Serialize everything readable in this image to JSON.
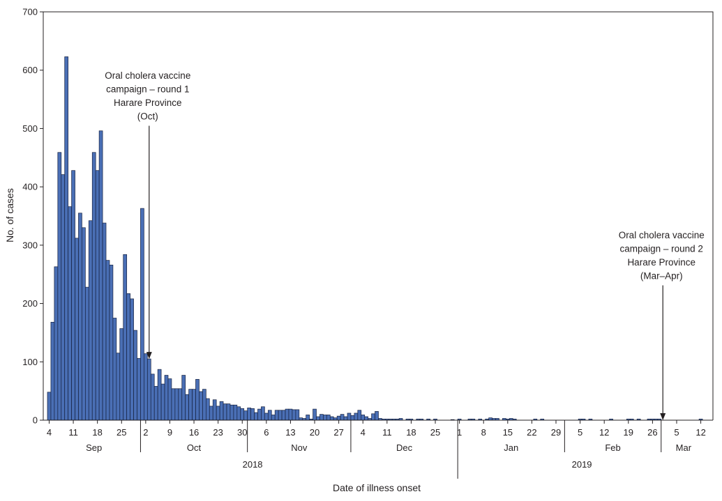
{
  "chart_data": {
    "type": "bar",
    "title": "",
    "xlabel": "Date of illness onset",
    "ylabel": "No. of cases",
    "ylim": [
      0,
      700
    ],
    "yticks": [
      0,
      100,
      200,
      300,
      400,
      500,
      600,
      700
    ],
    "grid": false,
    "bar_color": "#4a6fb5",
    "bar_edge_color": "#16213f",
    "x_start_date": "2018-09-04",
    "x_end_date": "2019-03-13",
    "day_ticks": [
      {
        "date": "2018-09-04",
        "label": "4"
      },
      {
        "date": "2018-09-11",
        "label": "11"
      },
      {
        "date": "2018-09-18",
        "label": "18"
      },
      {
        "date": "2018-09-25",
        "label": "25"
      },
      {
        "date": "2018-10-02",
        "label": "2"
      },
      {
        "date": "2018-10-09",
        "label": "9"
      },
      {
        "date": "2018-10-16",
        "label": "16"
      },
      {
        "date": "2018-10-23",
        "label": "23"
      },
      {
        "date": "2018-10-30",
        "label": "30"
      },
      {
        "date": "2018-11-06",
        "label": "6"
      },
      {
        "date": "2018-11-13",
        "label": "13"
      },
      {
        "date": "2018-11-20",
        "label": "20"
      },
      {
        "date": "2018-11-27",
        "label": "27"
      },
      {
        "date": "2018-12-04",
        "label": "4"
      },
      {
        "date": "2018-12-11",
        "label": "11"
      },
      {
        "date": "2018-12-18",
        "label": "18"
      },
      {
        "date": "2018-12-25",
        "label": "25"
      },
      {
        "date": "2019-01-01",
        "label": "1"
      },
      {
        "date": "2019-01-08",
        "label": "8"
      },
      {
        "date": "2019-01-15",
        "label": "15"
      },
      {
        "date": "2019-01-22",
        "label": "22"
      },
      {
        "date": "2019-01-29",
        "label": "29"
      },
      {
        "date": "2019-02-05",
        "label": "5"
      },
      {
        "date": "2019-02-12",
        "label": "12"
      },
      {
        "date": "2019-02-19",
        "label": "19"
      },
      {
        "date": "2019-02-26",
        "label": "26"
      },
      {
        "date": "2019-03-05",
        "label": "5"
      },
      {
        "date": "2019-03-12",
        "label": "12"
      }
    ],
    "months": [
      {
        "label": "Sep",
        "start": "2018-09-01",
        "end": "2018-10-01"
      },
      {
        "label": "Oct",
        "start": "2018-10-01",
        "end": "2018-11-01"
      },
      {
        "label": "Nov",
        "start": "2018-11-01",
        "end": "2018-12-01"
      },
      {
        "label": "Dec",
        "start": "2018-12-01",
        "end": "2019-01-01"
      },
      {
        "label": "Jan",
        "start": "2019-01-01",
        "end": "2019-02-01"
      },
      {
        "label": "Feb",
        "start": "2019-02-01",
        "end": "2019-03-01"
      },
      {
        "label": "Mar",
        "start": "2019-03-01",
        "end": "2019-04-01"
      }
    ],
    "years": [
      {
        "label": "2018",
        "start": "2018-09-01",
        "end": "2019-01-01"
      },
      {
        "label": "2019",
        "start": "2019-01-01",
        "end": "2019-04-01"
      }
    ],
    "series": [
      {
        "values": [
          {
            "date": "2018-09-04",
            "value": 48
          },
          {
            "date": "2018-09-05",
            "value": 168
          },
          {
            "date": "2018-09-06",
            "value": 263
          },
          {
            "date": "2018-09-07",
            "value": 459
          },
          {
            "date": "2018-09-08",
            "value": 421
          },
          {
            "date": "2018-09-09",
            "value": 623
          },
          {
            "date": "2018-09-10",
            "value": 366
          },
          {
            "date": "2018-09-11",
            "value": 428
          },
          {
            "date": "2018-09-12",
            "value": 312
          },
          {
            "date": "2018-09-13",
            "value": 355
          },
          {
            "date": "2018-09-14",
            "value": 330
          },
          {
            "date": "2018-09-15",
            "value": 228
          },
          {
            "date": "2018-09-16",
            "value": 342
          },
          {
            "date": "2018-09-17",
            "value": 459
          },
          {
            "date": "2018-09-18",
            "value": 428
          },
          {
            "date": "2018-09-19",
            "value": 496
          },
          {
            "date": "2018-09-20",
            "value": 338
          },
          {
            "date": "2018-09-21",
            "value": 274
          },
          {
            "date": "2018-09-22",
            "value": 266
          },
          {
            "date": "2018-09-23",
            "value": 175
          },
          {
            "date": "2018-09-24",
            "value": 115
          },
          {
            "date": "2018-09-25",
            "value": 157
          },
          {
            "date": "2018-09-26",
            "value": 284
          },
          {
            "date": "2018-09-27",
            "value": 217
          },
          {
            "date": "2018-09-28",
            "value": 208
          },
          {
            "date": "2018-09-29",
            "value": 154
          },
          {
            "date": "2018-09-30",
            "value": 106
          },
          {
            "date": "2018-10-01",
            "value": 363
          },
          {
            "date": "2018-10-02",
            "value": 114
          },
          {
            "date": "2018-10-03",
            "value": 105
          },
          {
            "date": "2018-10-04",
            "value": 79
          },
          {
            "date": "2018-10-05",
            "value": 58
          },
          {
            "date": "2018-10-06",
            "value": 87
          },
          {
            "date": "2018-10-07",
            "value": 62
          },
          {
            "date": "2018-10-08",
            "value": 77
          },
          {
            "date": "2018-10-09",
            "value": 71
          },
          {
            "date": "2018-10-10",
            "value": 54
          },
          {
            "date": "2018-10-11",
            "value": 54
          },
          {
            "date": "2018-10-12",
            "value": 54
          },
          {
            "date": "2018-10-13",
            "value": 77
          },
          {
            "date": "2018-10-14",
            "value": 44
          },
          {
            "date": "2018-10-15",
            "value": 53
          },
          {
            "date": "2018-10-16",
            "value": 53
          },
          {
            "date": "2018-10-17",
            "value": 70
          },
          {
            "date": "2018-10-18",
            "value": 49
          },
          {
            "date": "2018-10-19",
            "value": 53
          },
          {
            "date": "2018-10-20",
            "value": 37
          },
          {
            "date": "2018-10-21",
            "value": 24
          },
          {
            "date": "2018-10-22",
            "value": 35
          },
          {
            "date": "2018-10-23",
            "value": 24
          },
          {
            "date": "2018-10-24",
            "value": 32
          },
          {
            "date": "2018-10-25",
            "value": 28
          },
          {
            "date": "2018-10-26",
            "value": 28
          },
          {
            "date": "2018-10-27",
            "value": 26
          },
          {
            "date": "2018-10-28",
            "value": 26
          },
          {
            "date": "2018-10-29",
            "value": 23
          },
          {
            "date": "2018-10-30",
            "value": 20
          },
          {
            "date": "2018-10-31",
            "value": 16
          },
          {
            "date": "2018-11-01",
            "value": 21
          },
          {
            "date": "2018-11-02",
            "value": 20
          },
          {
            "date": "2018-11-03",
            "value": 13
          },
          {
            "date": "2018-11-04",
            "value": 19
          },
          {
            "date": "2018-11-05",
            "value": 23
          },
          {
            "date": "2018-11-06",
            "value": 12
          },
          {
            "date": "2018-11-07",
            "value": 17
          },
          {
            "date": "2018-11-08",
            "value": 9
          },
          {
            "date": "2018-11-09",
            "value": 17
          },
          {
            "date": "2018-11-10",
            "value": 17
          },
          {
            "date": "2018-11-11",
            "value": 17
          },
          {
            "date": "2018-11-12",
            "value": 19
          },
          {
            "date": "2018-11-13",
            "value": 19
          },
          {
            "date": "2018-11-14",
            "value": 18
          },
          {
            "date": "2018-11-15",
            "value": 18
          },
          {
            "date": "2018-11-16",
            "value": 4
          },
          {
            "date": "2018-11-17",
            "value": 3
          },
          {
            "date": "2018-11-18",
            "value": 9
          },
          {
            "date": "2018-11-19",
            "value": 2
          },
          {
            "date": "2018-11-20",
            "value": 19
          },
          {
            "date": "2018-11-21",
            "value": 6
          },
          {
            "date": "2018-11-22",
            "value": 10
          },
          {
            "date": "2018-11-23",
            "value": 9
          },
          {
            "date": "2018-11-24",
            "value": 9
          },
          {
            "date": "2018-11-25",
            "value": 6
          },
          {
            "date": "2018-11-26",
            "value": 4
          },
          {
            "date": "2018-11-27",
            "value": 7
          },
          {
            "date": "2018-11-28",
            "value": 10
          },
          {
            "date": "2018-11-29",
            "value": 6
          },
          {
            "date": "2018-11-30",
            "value": 12
          },
          {
            "date": "2018-12-01",
            "value": 8
          },
          {
            "date": "2018-12-02",
            "value": 12
          },
          {
            "date": "2018-12-03",
            "value": 17
          },
          {
            "date": "2018-12-04",
            "value": 9
          },
          {
            "date": "2018-12-05",
            "value": 6
          },
          {
            "date": "2018-12-06",
            "value": 3
          },
          {
            "date": "2018-12-07",
            "value": 11
          },
          {
            "date": "2018-12-08",
            "value": 15
          },
          {
            "date": "2018-12-09",
            "value": 3
          },
          {
            "date": "2018-12-10",
            "value": 2
          },
          {
            "date": "2018-12-11",
            "value": 2
          },
          {
            "date": "2018-12-12",
            "value": 2
          },
          {
            "date": "2018-12-13",
            "value": 2
          },
          {
            "date": "2018-12-14",
            "value": 2
          },
          {
            "date": "2018-12-15",
            "value": 3
          },
          {
            "date": "2018-12-17",
            "value": 2
          },
          {
            "date": "2018-12-18",
            "value": 2
          },
          {
            "date": "2018-12-20",
            "value": 2
          },
          {
            "date": "2018-12-21",
            "value": 2
          },
          {
            "date": "2018-12-23",
            "value": 2
          },
          {
            "date": "2018-12-25",
            "value": 2
          },
          {
            "date": "2018-12-30",
            "value": 1
          },
          {
            "date": "2019-01-01",
            "value": 2
          },
          {
            "date": "2019-01-04",
            "value": 2
          },
          {
            "date": "2019-01-05",
            "value": 2
          },
          {
            "date": "2019-01-07",
            "value": 2
          },
          {
            "date": "2019-01-09",
            "value": 2
          },
          {
            "date": "2019-01-10",
            "value": 4
          },
          {
            "date": "2019-01-11",
            "value": 3
          },
          {
            "date": "2019-01-12",
            "value": 3
          },
          {
            "date": "2019-01-14",
            "value": 3
          },
          {
            "date": "2019-01-15",
            "value": 2
          },
          {
            "date": "2019-01-16",
            "value": 3
          },
          {
            "date": "2019-01-17",
            "value": 2
          },
          {
            "date": "2019-01-23",
            "value": 2
          },
          {
            "date": "2019-01-25",
            "value": 2
          },
          {
            "date": "2019-02-05",
            "value": 2
          },
          {
            "date": "2019-02-06",
            "value": 2
          },
          {
            "date": "2019-02-08",
            "value": 2
          },
          {
            "date": "2019-02-14",
            "value": 2
          },
          {
            "date": "2019-02-19",
            "value": 2
          },
          {
            "date": "2019-02-20",
            "value": 2
          },
          {
            "date": "2019-02-22",
            "value": 2
          },
          {
            "date": "2019-02-25",
            "value": 2
          },
          {
            "date": "2019-02-26",
            "value": 2
          },
          {
            "date": "2019-02-27",
            "value": 2
          },
          {
            "date": "2019-02-28",
            "value": 2
          },
          {
            "date": "2019-03-12",
            "value": 2
          }
        ]
      }
    ],
    "annotations": [
      {
        "lines": [
          "Oral cholera vaccine",
          "campaign – round 1",
          "Harare Province",
          "(Oct)"
        ],
        "date": "2018-10-03",
        "arrow_tip_value": 105
      },
      {
        "lines": [
          "Oral cholera vaccine",
          "campaign – round 2",
          "Harare Province",
          "(Mar–Apr)"
        ],
        "date": "2019-03-01",
        "arrow_tip_value": 0
      }
    ]
  }
}
